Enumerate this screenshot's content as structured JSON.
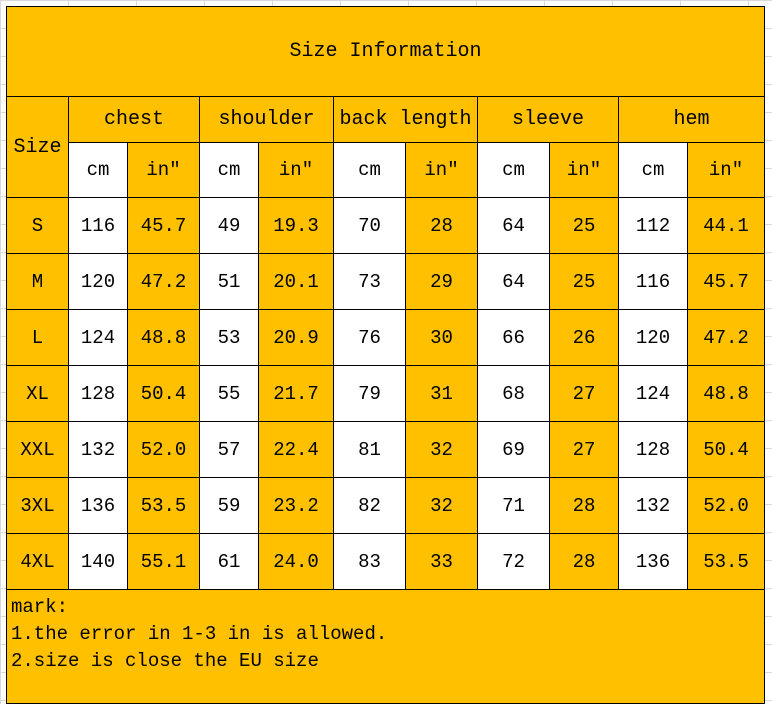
{
  "title": "Size Information",
  "size_header": "Size",
  "groups": [
    "chest",
    "shoulder",
    "back length",
    "sleeve",
    "hem"
  ],
  "units": {
    "cm": "cm",
    "in": "in″"
  },
  "rows": [
    [
      "S",
      "116",
      "45.7",
      "49",
      "19.3",
      "70",
      "28",
      "64",
      "25",
      "112",
      "44.1"
    ],
    [
      "M",
      "120",
      "47.2",
      "51",
      "20.1",
      "73",
      "29",
      "64",
      "25",
      "116",
      "45.7"
    ],
    [
      "L",
      "124",
      "48.8",
      "53",
      "20.9",
      "76",
      "30",
      "66",
      "26",
      "120",
      "47.2"
    ],
    [
      "XL",
      "128",
      "50.4",
      "55",
      "21.7",
      "79",
      "31",
      "68",
      "27",
      "124",
      "48.8"
    ],
    [
      "XXL",
      "132",
      "52.0",
      "57",
      "22.4",
      "81",
      "32",
      "69",
      "27",
      "128",
      "50.4"
    ],
    [
      "3XL",
      "136",
      "53.5",
      "59",
      "23.2",
      "82",
      "32",
      "71",
      "28",
      "132",
      "52.0"
    ],
    [
      "4XL",
      "140",
      "55.1",
      "61",
      "24.0",
      "83",
      "33",
      "72",
      "28",
      "136",
      "53.5"
    ]
  ],
  "notes": [
    "mark:",
    "1.the error in 1-3 in is allowed.",
    "2.size is close the EU size"
  ],
  "colors": {
    "fill": "#FFC000",
    "white": "#FFFFFF"
  }
}
